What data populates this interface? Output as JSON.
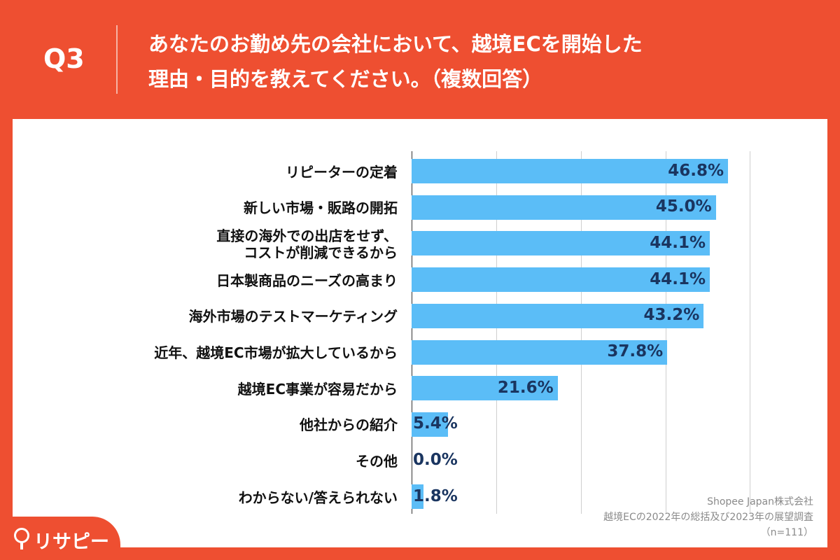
{
  "header": {
    "question_no": "Q3",
    "question_line1": "あなたのお勤め先の会社において、越境ECを開始した",
    "question_line2": "理由・目的を教えてください。（複数回答）"
  },
  "chart_data": {
    "type": "bar",
    "orientation": "horizontal",
    "categories": [
      "リピーターの定着",
      "新しい市場・販路の開拓",
      "直接の海外での出店をせず、\nコストが削減できるから",
      "日本製商品のニーズの高まり",
      "海外市場のテストマーケティング",
      "近年、越境EC市場が拡大しているから",
      "越境EC事業が容易だから",
      "他社からの紹介",
      "その他",
      "わからない/答えられない"
    ],
    "values": [
      46.8,
      45.0,
      44.1,
      44.1,
      43.2,
      37.8,
      21.6,
      5.4,
      0.0,
      1.8
    ],
    "value_labels": [
      "46.8%",
      "45.0%",
      "44.1%",
      "44.1%",
      "43.2%",
      "37.8%",
      "21.6%",
      "5.4%",
      "0.0%",
      "1.8%"
    ],
    "xlim": [
      0,
      50
    ],
    "grid": true,
    "bar_color": "#5bbdf7"
  },
  "source": {
    "line1": "Shopee Japan株式会社",
    "line2": "越境ECの2022年の総括及び2023年の展望調査",
    "line3": "（n=111）"
  },
  "logo": {
    "text": "リサピー"
  },
  "colors": {
    "background": "#ee4f31",
    "bar": "#5bbdf7",
    "value_text": "#1a3560"
  }
}
